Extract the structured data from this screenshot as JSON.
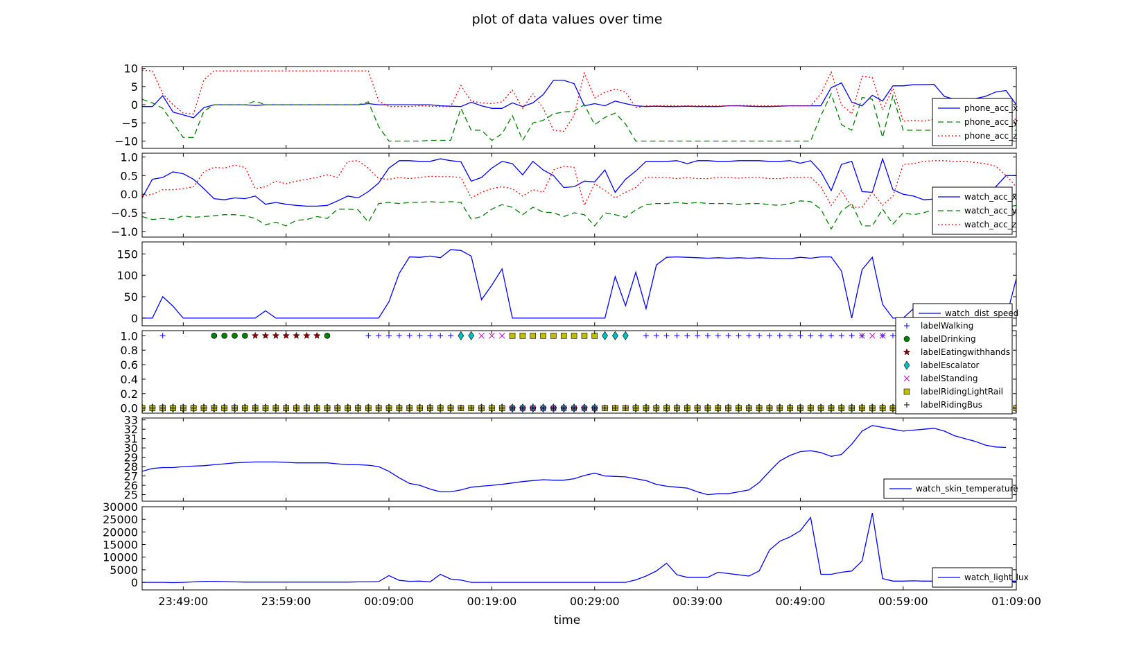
{
  "figure": {
    "title": "plot of data values over time",
    "xlabel": "time"
  },
  "chart_data": [
    {
      "type": "line",
      "xlim": [
        0,
        85
      ],
      "ylim": [
        -12,
        10.5
      ],
      "yticks": [
        -10,
        -5,
        0,
        5,
        10
      ],
      "ytick_labels": [
        "−10",
        "−5",
        "0",
        "5",
        "10"
      ],
      "legend_position": "lower-right",
      "series": [
        {
          "name": "phone_acc_x",
          "style": "solid",
          "color": "#0000ff",
          "values": [
            -0.5,
            -0.5,
            2.5,
            -2,
            -2.8,
            -3.6,
            -0.8,
            0,
            0,
            0,
            0,
            -0.2,
            0,
            0,
            0,
            0,
            0,
            0,
            0,
            0,
            0,
            0,
            0.3,
            0,
            0,
            0,
            0,
            0,
            0,
            -0.3,
            -0.4,
            -0.5,
            0.7,
            -0.3,
            -1,
            -1,
            0.5,
            -0.5,
            0.5,
            2.8,
            6.7,
            6.7,
            5.8,
            -0.3,
            0.3,
            -0.3,
            1,
            0.3,
            -0.3,
            -0.5,
            -0.4,
            -0.5,
            -0.5,
            -0.4,
            -0.5,
            -0.5,
            -0.5,
            -0.3,
            -0.3,
            -0.4,
            -0.5,
            -0.5,
            -0.4,
            -0.3,
            -0.3,
            -0.3,
            -0.3,
            4.7,
            6,
            0.7,
            -0.3,
            2.6,
            1,
            5.2,
            5.2,
            5.5,
            5.5,
            5.6,
            2.3,
            1.5,
            1.5,
            1.7,
            2.3,
            3.5,
            3.9,
            0
          ]
        },
        {
          "name": "phone_acc_y",
          "style": "dashed",
          "color": "#008000",
          "values": [
            1.5,
            0.5,
            -1,
            -5,
            -9,
            -9,
            -1.8,
            0,
            0,
            0,
            0,
            1,
            0,
            0,
            0,
            0,
            0,
            0,
            0,
            0,
            0,
            0,
            0.8,
            -6,
            -10,
            -10,
            -10,
            -10,
            -9.8,
            -9.8,
            -9.8,
            -1,
            -7,
            -7,
            -9.8,
            -8,
            -3,
            -9.8,
            -5,
            -4.3,
            -2.5,
            -2,
            -1.8,
            0,
            -5.5,
            -3.5,
            -2.3,
            -5.3,
            -10,
            -10,
            -10,
            -10,
            -10,
            -10,
            -10,
            -10,
            -10,
            -10,
            -10,
            -10,
            -10,
            -10,
            -10,
            -10,
            -10,
            -10,
            -3,
            3,
            -5.5,
            -7,
            2,
            1.5,
            -9,
            2.5,
            -7,
            -7,
            -7,
            -7,
            -6.8,
            -7,
            -7,
            -7,
            -7.5,
            -7,
            -7,
            -7
          ]
        },
        {
          "name": "phone_acc_z",
          "style": "dotted",
          "color": "#ff0000",
          "values": [
            9.5,
            9.3,
            3,
            0,
            -2.3,
            -2.5,
            6.8,
            9.3,
            9.3,
            9.3,
            9.3,
            9.3,
            9.3,
            9.3,
            9.3,
            9.3,
            9.3,
            9.3,
            9.3,
            9.3,
            9.3,
            9.3,
            9.3,
            1,
            -0.5,
            -0.5,
            -0.5,
            -0.3,
            -0.4,
            -0.5,
            -0.5,
            5.3,
            1,
            0.5,
            0.3,
            0.8,
            4,
            -1,
            3,
            -1,
            -7,
            -7.3,
            -3,
            8.7,
            1.9,
            3.4,
            4.3,
            3.5,
            -0.8,
            -0.3,
            -0.3,
            -0.2,
            -0.3,
            -0.3,
            -0.3,
            -0.3,
            -0.3,
            -0.3,
            -0.2,
            -0.2,
            -0.3,
            -0.3,
            -0.3,
            -0.3,
            -0.3,
            -0.3,
            3,
            9,
            0,
            -2.5,
            7.8,
            7.5,
            -1.5,
            4.5,
            -4.5,
            -4.3,
            -4.5,
            -4,
            -3.8,
            -4,
            -4,
            -4,
            -3.8,
            -4,
            -4,
            -4
          ]
        }
      ]
    },
    {
      "type": "line",
      "xlim": [
        0,
        85
      ],
      "ylim": [
        -1.15,
        1.1
      ],
      "yticks": [
        -1,
        -0.5,
        0,
        0.5,
        1
      ],
      "ytick_labels": [
        "−1.0",
        "−0.5",
        "0.0",
        "0.5",
        "1.0"
      ],
      "legend_position": "lower-right",
      "series": [
        {
          "name": "watch_acc_x",
          "style": "solid",
          "color": "#0000ff",
          "values": [
            -0.1,
            0.4,
            0.45,
            0.6,
            0.55,
            0.4,
            0.15,
            -0.12,
            -0.15,
            -0.1,
            -0.12,
            -0.05,
            -0.27,
            -0.22,
            -0.27,
            -0.3,
            -0.32,
            -0.32,
            -0.3,
            -0.18,
            -0.05,
            -0.1,
            0.07,
            0.3,
            0.7,
            0.9,
            0.9,
            0.88,
            0.88,
            0.95,
            0.9,
            0.87,
            0.35,
            0.45,
            0.7,
            0.88,
            0.82,
            0.52,
            0.88,
            0.65,
            0.5,
            0.18,
            0.2,
            0.35,
            0.33,
            0.65,
            0.05,
            0.4,
            0.62,
            0.88,
            0.88,
            0.88,
            0.9,
            0.82,
            0.9,
            0.9,
            0.88,
            0.88,
            0.9,
            0.9,
            0.9,
            0.88,
            0.88,
            0.9,
            0.83,
            0.9,
            0.6,
            0.1,
            0.8,
            0.88,
            0.07,
            0.05,
            0.95,
            0.12,
            0,
            -0.05,
            -0.15,
            -0.13,
            -0.15,
            -0.13,
            -0.1,
            -0.12,
            -0.15,
            0.2,
            0.5,
            0.5
          ]
        },
        {
          "name": "watch_acc_y",
          "style": "dashed",
          "color": "#008000",
          "values": [
            -0.6,
            -0.68,
            -0.65,
            -0.68,
            -0.58,
            -0.62,
            -0.6,
            -0.58,
            -0.55,
            -0.55,
            -0.58,
            -0.65,
            -0.82,
            -0.75,
            -0.85,
            -0.7,
            -0.68,
            -0.6,
            -0.65,
            -0.4,
            -0.4,
            -0.42,
            -0.75,
            -0.25,
            -0.22,
            -0.25,
            -0.22,
            -0.22,
            -0.2,
            -0.22,
            -0.2,
            -0.22,
            -0.67,
            -0.6,
            -0.4,
            -0.28,
            -0.35,
            -0.55,
            -0.35,
            -0.48,
            -0.5,
            -0.6,
            -0.5,
            -0.55,
            -0.85,
            -0.5,
            -0.55,
            -0.62,
            -0.42,
            -0.28,
            -0.25,
            -0.25,
            -0.22,
            -0.25,
            -0.22,
            -0.25,
            -0.25,
            -0.25,
            -0.28,
            -0.25,
            -0.25,
            -0.28,
            -0.3,
            -0.25,
            -0.18,
            -0.2,
            -0.4,
            -0.93,
            -0.45,
            -0.25,
            -0.85,
            -0.85,
            -0.4,
            -0.8,
            -0.5,
            -0.55,
            -0.5,
            -0.4,
            -0.38,
            -0.35,
            -0.35,
            -0.3,
            -0.3,
            -0.3,
            -0.35,
            -0.3
          ]
        },
        {
          "name": "watch_acc_z",
          "style": "dotted",
          "color": "#ff0000",
          "values": [
            -0.05,
            0,
            0.12,
            0.12,
            0.15,
            0.2,
            0.6,
            0.72,
            0.7,
            0.78,
            0.72,
            0.15,
            0.2,
            0.35,
            0.28,
            0.35,
            0.4,
            0.45,
            0.52,
            0.45,
            0.88,
            0.9,
            0.7,
            0.42,
            0.4,
            0.45,
            0.42,
            0.45,
            0.48,
            0.47,
            0.47,
            0.45,
            -0.1,
            0.05,
            0.15,
            0.2,
            0.15,
            -0.05,
            0.12,
            0.05,
            0.65,
            0.75,
            0.72,
            -0.3,
            0.28,
            0.1,
            -0.1,
            0.05,
            0.18,
            0.45,
            0.45,
            0.45,
            0.42,
            0.45,
            0.42,
            0.42,
            0.45,
            0.45,
            0.43,
            0.45,
            0.45,
            0.42,
            0.42,
            0.45,
            0.45,
            0.45,
            0.2,
            -0.3,
            0.1,
            -0.35,
            -0.35,
            0.05,
            -0.3,
            -0.05,
            0.8,
            0.82,
            0.88,
            0.9,
            0.9,
            0.88,
            0.88,
            0.85,
            0.82,
            0.75,
            0.5,
            0.2
          ]
        }
      ]
    },
    {
      "type": "line",
      "xlim": [
        0,
        85
      ],
      "ylim": [
        -18,
        178
      ],
      "yticks": [
        0,
        50,
        100,
        150
      ],
      "ytick_labels": [
        "0",
        "50",
        "100",
        "150"
      ],
      "legend_position": "lower-right",
      "series": [
        {
          "name": "watch_dist_speed",
          "style": "solid",
          "color": "#0000ff",
          "values": [
            0,
            0,
            50,
            28,
            0,
            0,
            0,
            0,
            0,
            0,
            0,
            0,
            17,
            0,
            0,
            0,
            0,
            0,
            0,
            0,
            0,
            0,
            0,
            0,
            38,
            105,
            143,
            142,
            145,
            141,
            160,
            158,
            145,
            43,
            77,
            115,
            0,
            0,
            0,
            0,
            0,
            0,
            0,
            0,
            0,
            0,
            97,
            29,
            107,
            22,
            124,
            142,
            143,
            142,
            141,
            140,
            141,
            140,
            141,
            140,
            141,
            140,
            139,
            139,
            142,
            140,
            143,
            143,
            110,
            0,
            113,
            142,
            32,
            0,
            0,
            22,
            0,
            0,
            0,
            0,
            0,
            0,
            0,
            0,
            0,
            92
          ]
        }
      ]
    },
    {
      "type": "scatter",
      "xlim": [
        0,
        85
      ],
      "ylim": [
        -0.07,
        1.07
      ],
      "yticks": [
        0,
        0.2,
        0.4,
        0.6,
        0.8,
        1.0
      ],
      "ytick_labels": [
        "0.0",
        "0.2",
        "0.4",
        "0.6",
        "0.8",
        "1.0"
      ],
      "legend_position": "upper-right",
      "series": [
        {
          "name": "labelWalking",
          "marker": "+",
          "color": "#0000ff",
          "x_true": [
            2,
            22,
            23,
            24,
            25,
            26,
            27,
            28,
            29,
            30,
            31,
            49,
            50,
            51,
            52,
            53,
            54,
            55,
            56,
            57,
            58,
            59,
            60,
            61,
            62,
            63,
            64,
            65,
            66,
            67,
            68,
            69,
            70,
            72,
            73,
            74
          ],
          "y": "0 elsewhere"
        },
        {
          "name": "labelDrinking",
          "marker": "o",
          "color": "#008000",
          "x_true": [
            7,
            8,
            9,
            10,
            18
          ],
          "y": "0 elsewhere"
        },
        {
          "name": "labelEatingwithhands",
          "marker": "*",
          "color": "#8b0000",
          "x_true": [
            11,
            12,
            13,
            14,
            15,
            16,
            17
          ],
          "y": "0 elsewhere"
        },
        {
          "name": "labelEscalator",
          "marker": "d",
          "color": "#00bfbf",
          "x_true": [
            31,
            32,
            45,
            46,
            47
          ],
          "y": "0 elsewhere"
        },
        {
          "name": "labelStanding",
          "marker": "x",
          "color": "#bf00bf",
          "x_true": [
            33,
            34,
            35,
            70,
            71,
            72
          ],
          "y": "0 elsewhere"
        },
        {
          "name": "labelRidingLightRail",
          "marker": "s",
          "color": "#bfbf00",
          "x_true": [
            36,
            37,
            38,
            39,
            40,
            41,
            42,
            43,
            44
          ],
          "y": "0 elsewhere"
        },
        {
          "name": "labelRidingBus",
          "marker": "+",
          "color": "#000000",
          "x_true": [],
          "y": "0 everywhere"
        }
      ]
    },
    {
      "type": "line",
      "xlim": [
        0,
        85
      ],
      "ylim": [
        24.3,
        33.2
      ],
      "yticks": [
        25,
        26,
        27,
        28,
        29,
        30,
        31,
        32,
        33
      ],
      "ytick_labels": [
        "25",
        "26",
        "27",
        "28",
        "29",
        "30",
        "31",
        "32",
        "33"
      ],
      "legend_position": "lower-right",
      "series": [
        {
          "name": "watch_skin_temperature",
          "style": "solid",
          "color": "#0000ff",
          "values": [
            27.5,
            27.8,
            27.9,
            27.9,
            28,
            28.05,
            28.1,
            28.2,
            28.3,
            28.4,
            28.45,
            28.5,
            28.5,
            28.5,
            28.45,
            28.4,
            28.4,
            28.4,
            28.4,
            28.3,
            28.2,
            28.2,
            28.15,
            28,
            27.5,
            26.8,
            26.2,
            26,
            25.6,
            25.3,
            25.3,
            25.5,
            25.8,
            25.9,
            26,
            26.1,
            26.25,
            26.4,
            26.5,
            26.6,
            26.55,
            26.55,
            26.7,
            27.05,
            27.3,
            27,
            26.95,
            26.9,
            26.7,
            26.5,
            26.1,
            25.9,
            25.8,
            25.7,
            25.3,
            25,
            25.1,
            25.1,
            25.3,
            25.5,
            26.3,
            27.5,
            28.6,
            29.2,
            29.6,
            29.7,
            29.5,
            29.1,
            29.3,
            30.4,
            31.8,
            32.4,
            32.2,
            32,
            31.8,
            31.9,
            32,
            32.1,
            31.8,
            31.3,
            31,
            30.7,
            30.3,
            30.1,
            30.05
          ]
        }
      ]
    },
    {
      "type": "line",
      "xlim": [
        0,
        85
      ],
      "ylim": [
        -3000,
        30000
      ],
      "yticks": [
        0,
        5000,
        10000,
        15000,
        20000,
        25000,
        30000
      ],
      "ytick_labels": [
        "0",
        "5000",
        "10000",
        "15000",
        "20000",
        "25000",
        "30000"
      ],
      "legend_position": "lower-right",
      "series": [
        {
          "name": "watch_light_lux",
          "style": "solid",
          "color": "#0000ff",
          "values": [
            0,
            0,
            0,
            -100,
            0,
            200,
            400,
            400,
            300,
            200,
            100,
            100,
            100,
            100,
            100,
            100,
            100,
            100,
            100,
            100,
            100,
            200,
            200,
            300,
            2700,
            800,
            400,
            500,
            200,
            3200,
            1300,
            900,
            0,
            0,
            0,
            0,
            0,
            0,
            0,
            0,
            0,
            0,
            0,
            0,
            0,
            0,
            0,
            0,
            1000,
            2500,
            4500,
            7600,
            3000,
            2000,
            2000,
            2000,
            4000,
            3500,
            3000,
            2500,
            4500,
            12800,
            16300,
            18000,
            20500,
            25700,
            3200,
            3200,
            4000,
            4500,
            8500,
            27500,
            1500,
            500,
            500,
            600,
            500,
            500,
            500,
            500,
            500,
            500,
            500,
            500,
            500,
            500
          ]
        }
      ]
    }
  ],
  "xaxis": {
    "ticks": [
      4,
      14,
      24,
      34,
      44,
      54,
      64,
      74,
      85
    ],
    "tick_labels": [
      "23:49:00",
      "23:59:00",
      "00:09:00",
      "00:19:00",
      "00:29:00",
      "00:39:00",
      "00:49:00",
      "00:59:00",
      "01:09:00"
    ]
  }
}
